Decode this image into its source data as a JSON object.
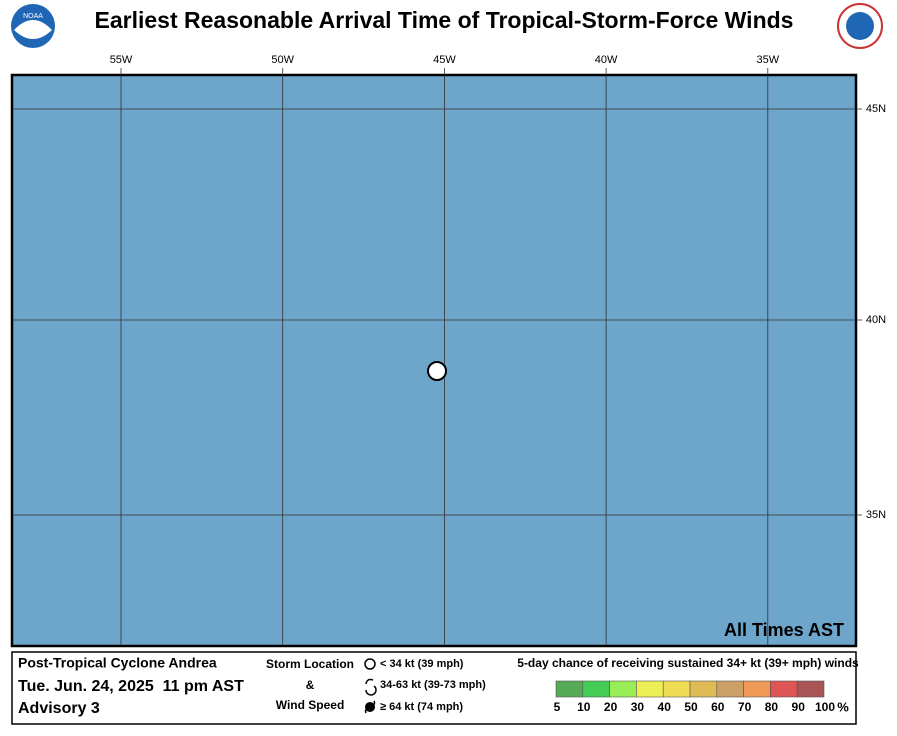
{
  "header": {
    "title": "Earliest Reasonable Arrival Time of Tropical-Storm-Force Winds",
    "logo_left": "NOAA"
  },
  "map": {
    "lon_labels": [
      "55W",
      "50W",
      "45W",
      "40W",
      "35W"
    ],
    "lat_labels": [
      "45N",
      "40N",
      "35N"
    ],
    "note": "All Times AST"
  },
  "footer": {
    "storm": "Post-Tropical Cyclone Andrea",
    "date": "Tue. Jun. 24, 2025  11 pm AST",
    "advisory": "Advisory 3",
    "legend_title_1": "Storm Location",
    "legend_amp": "&",
    "legend_title_2": "Wind Speed",
    "wind_classes": [
      "< 34 kt (39 mph)",
      "34-63 kt (39-73 mph)",
      "≥ 64 kt (74 mph)"
    ],
    "scale_title": "5-day chance of receiving sustained 34+ kt (39+ mph) winds",
    "scale_labels": [
      "5",
      "10",
      "20",
      "30",
      "40",
      "50",
      "60",
      "70",
      "80",
      "90",
      "100"
    ],
    "scale_unit": "%",
    "scale_colors": [
      "#56aa56",
      "#44cc55",
      "#99ee55",
      "#eeee55",
      "#eedd55",
      "#ddbb55",
      "#cc9f66",
      "#ee9955",
      "#dd5555",
      "#aa5555",
      "#aa55bb"
    ]
  }
}
